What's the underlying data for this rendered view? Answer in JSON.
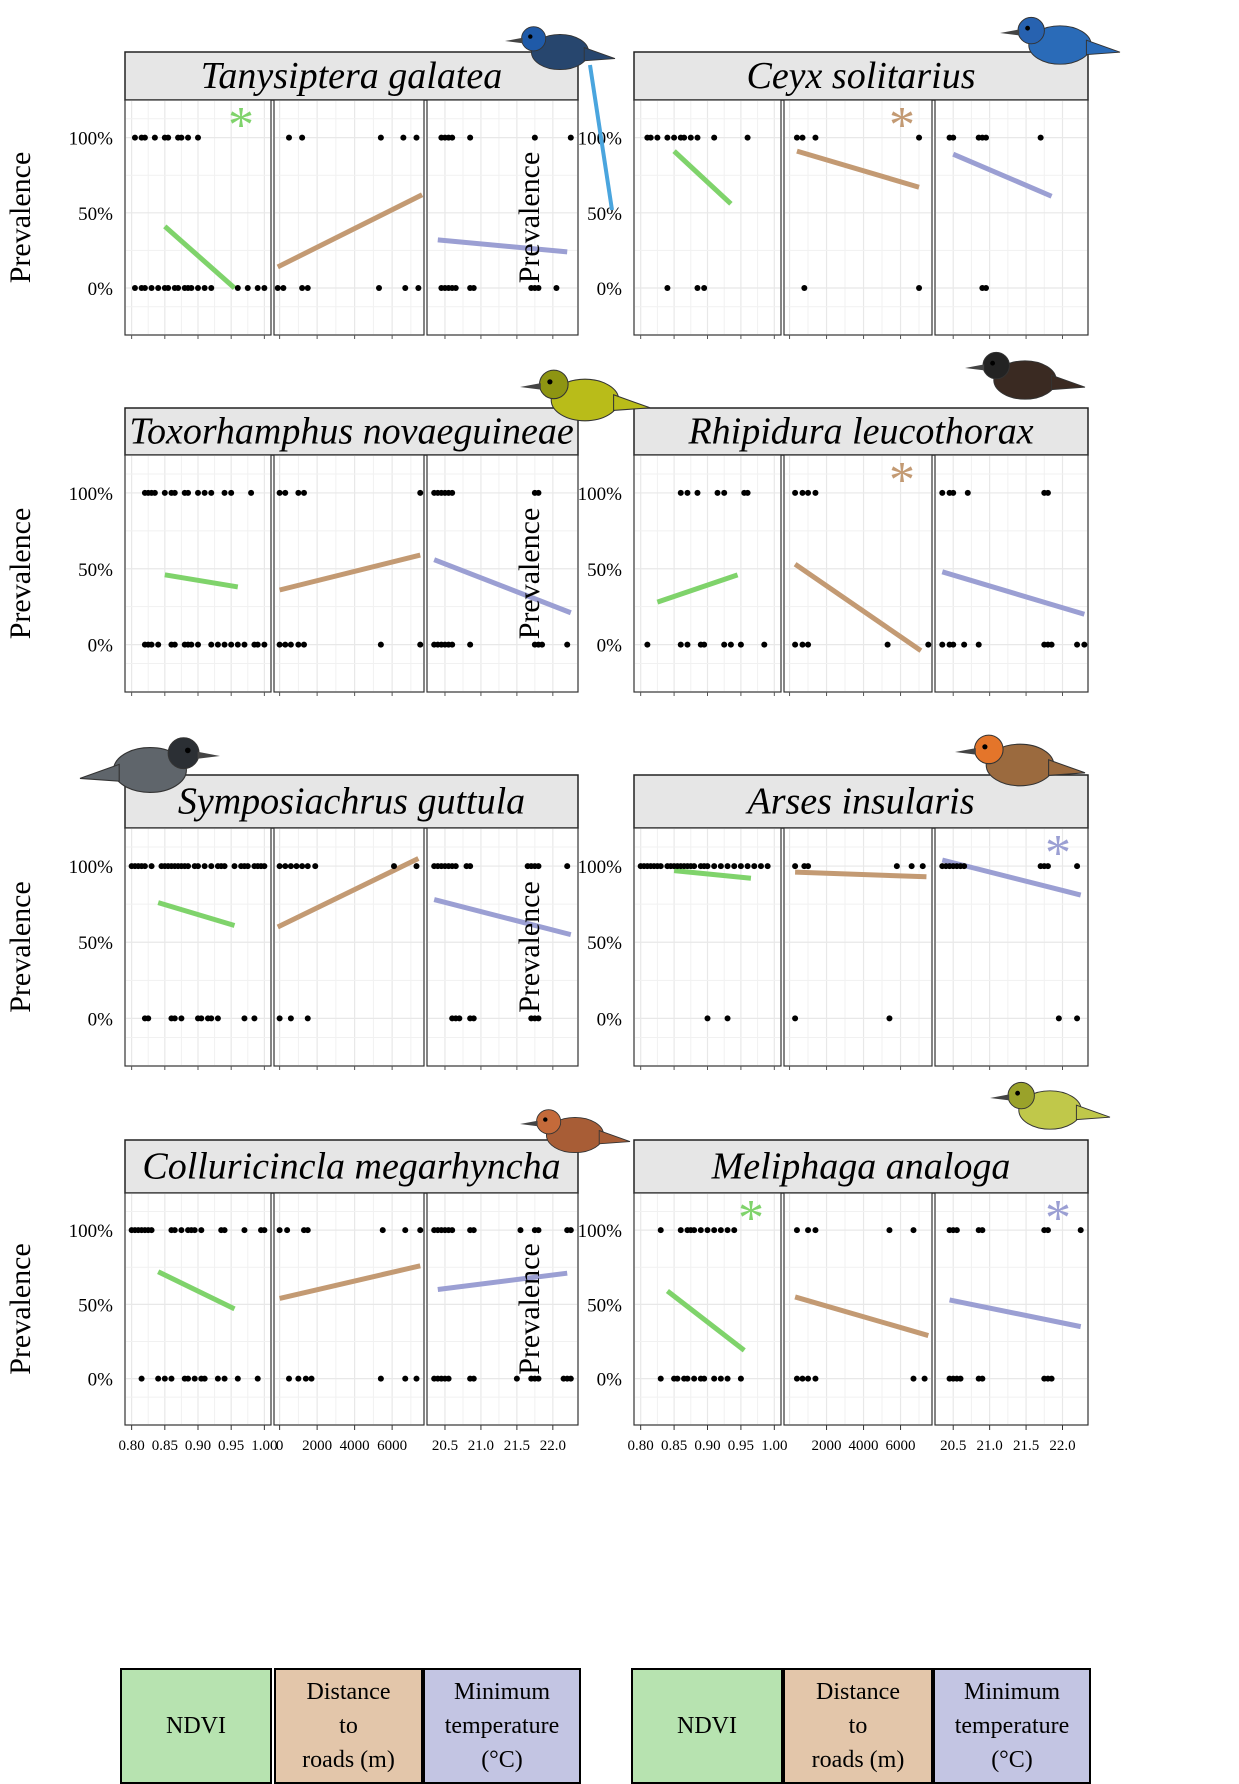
{
  "page": {
    "ylabel": "Prevalence"
  },
  "colors": {
    "ndvi": "#7fd36b",
    "roads": "#c39a73",
    "temp": "#9b9fd3",
    "grid": "#e8e8e8",
    "strip": "#e6e6e6",
    "legend_ndvi": "#b7e3b0",
    "legend_roads": "#e3c6aa",
    "legend_temp": "#c3c5e3"
  },
  "legend": {
    "ndvi": "NDVI",
    "roads": [
      "Distance",
      "to",
      "roads (m)"
    ],
    "temp": [
      "Minimum",
      "temperature",
      "(°C)"
    ]
  },
  "x_ticks": {
    "ndvi": [
      "0.80",
      "0.85",
      "0.90",
      "0.95",
      "1.00"
    ],
    "roads_left": [
      "0",
      "2000",
      "4000",
      "6000"
    ],
    "roads_right": [
      "2000",
      "4000",
      "6000"
    ],
    "temp": [
      "20.5",
      "21.0",
      "21.5",
      "22.0"
    ]
  },
  "y_ticks": [
    "100%",
    "50%",
    "0%"
  ],
  "chart_data": [
    {
      "type": "scatter",
      "title": "Tanysiptera galatea",
      "ylabel": "Prevalence",
      "significant": [
        "NDVI"
      ],
      "panels": [
        {
          "xlabel": "NDVI",
          "xlim": [
            0.79,
            1.01
          ],
          "points_100": [
            0.805,
            0.815,
            0.82,
            0.835,
            0.85,
            0.855,
            0.87,
            0.875,
            0.885,
            0.9
          ],
          "points_0": [
            0.805,
            0.815,
            0.82,
            0.83,
            0.84,
            0.85,
            0.855,
            0.865,
            0.87,
            0.88,
            0.885,
            0.89,
            0.9,
            0.91,
            0.92,
            0.96,
            0.975,
            0.99,
            1.0
          ],
          "fit": {
            "x": [
              0.85,
              0.955
            ],
            "y": [
              0.41,
              0.0
            ]
          }
        },
        {
          "xlabel": "Distance to roads (m)",
          "xlim": [
            -300,
            7700
          ],
          "points_100": [
            500,
            1200,
            5400,
            6600,
            7300
          ],
          "points_0": [
            -100,
            200,
            1200,
            1500,
            5300,
            6700,
            7400
          ],
          "fit": {
            "x": [
              -100,
              7600
            ],
            "y": [
              0.14,
              0.62
            ]
          }
        },
        {
          "xlabel": "Minimum temperature (°C)",
          "xlim": [
            20.25,
            22.35
          ],
          "points_100": [
            20.45,
            20.5,
            20.55,
            20.6,
            20.85,
            21.75,
            22.25
          ],
          "points_0": [
            20.45,
            20.5,
            20.55,
            20.6,
            20.65,
            20.85,
            20.9,
            21.7,
            21.75,
            21.8,
            22.05
          ],
          "fit": {
            "x": [
              20.4,
              22.2
            ],
            "y": [
              0.32,
              0.24
            ]
          }
        }
      ]
    },
    {
      "type": "scatter",
      "title": "Ceyx solitarius",
      "ylabel": "Prevalence",
      "significant": [
        "Distance to roads (m)"
      ],
      "panels": [
        {
          "xlabel": "NDVI",
          "xlim": [
            0.79,
            1.01
          ],
          "points_100": [
            0.81,
            0.815,
            0.825,
            0.84,
            0.85,
            0.86,
            0.865,
            0.875,
            0.885,
            0.91,
            0.96
          ],
          "points_0": [
            0.84,
            0.885,
            0.895
          ],
          "fit": {
            "x": [
              0.85,
              0.935
            ],
            "y": [
              0.91,
              0.56
            ]
          }
        },
        {
          "xlabel": "Distance to roads (m)",
          "xlim": [
            -300,
            7700
          ],
          "points_100": [
            400,
            700,
            1400,
            7000
          ],
          "points_0": [
            800,
            7000
          ],
          "fit": {
            "x": [
              400,
              7000
            ],
            "y": [
              0.91,
              0.67
            ]
          }
        },
        {
          "xlabel": "Minimum temperature (°C)",
          "xlim": [
            20.25,
            22.35
          ],
          "points_100": [
            20.45,
            20.5,
            20.85,
            20.9,
            20.95,
            21.7
          ],
          "points_0": [
            20.9,
            20.95
          ],
          "fit": {
            "x": [
              20.5,
              21.85
            ],
            "y": [
              0.89,
              0.61
            ]
          }
        }
      ]
    },
    {
      "type": "scatter",
      "title": "Toxorhamphus novaeguineae",
      "ylabel": "Prevalence",
      "significant": [],
      "panels": [
        {
          "xlabel": "NDVI",
          "xlim": [
            0.79,
            1.01
          ],
          "points_100": [
            0.82,
            0.825,
            0.83,
            0.835,
            0.85,
            0.86,
            0.865,
            0.88,
            0.885,
            0.9,
            0.91,
            0.92,
            0.94,
            0.95,
            0.98
          ],
          "points_0": [
            0.82,
            0.825,
            0.83,
            0.84,
            0.86,
            0.865,
            0.88,
            0.885,
            0.89,
            0.9,
            0.92,
            0.93,
            0.94,
            0.95,
            0.96,
            0.97,
            0.985,
            0.99,
            1.0
          ],
          "fit": {
            "x": [
              0.85,
              0.96
            ],
            "y": [
              0.46,
              0.38
            ]
          }
        },
        {
          "xlabel": "Distance to roads (m)",
          "xlim": [
            -300,
            7700
          ],
          "points_100": [
            0,
            300,
            1000,
            1300,
            7500
          ],
          "points_0": [
            0,
            300,
            600,
            1000,
            1300,
            5400,
            7500
          ],
          "fit": {
            "x": [
              0,
              7500
            ],
            "y": [
              0.36,
              0.59
            ]
          }
        },
        {
          "xlabel": "Minimum temperature (°C)",
          "xlim": [
            20.25,
            22.35
          ],
          "points_100": [
            20.35,
            20.4,
            20.45,
            20.5,
            20.55,
            20.6,
            21.75,
            21.8
          ],
          "points_0": [
            20.35,
            20.4,
            20.45,
            20.5,
            20.55,
            20.6,
            20.85,
            21.75,
            21.8,
            21.85,
            22.2
          ],
          "fit": {
            "x": [
              20.35,
              22.25
            ],
            "y": [
              0.56,
              0.21
            ]
          }
        }
      ]
    },
    {
      "type": "scatter",
      "title": "Rhipidura leucothorax",
      "ylabel": "Prevalence",
      "significant": [
        "Distance to roads (m)"
      ],
      "panels": [
        {
          "xlabel": "NDVI",
          "xlim": [
            0.79,
            1.01
          ],
          "points_100": [
            0.86,
            0.87,
            0.885,
            0.915,
            0.925,
            0.955,
            0.96
          ],
          "points_0": [
            0.81,
            0.86,
            0.87,
            0.89,
            0.895,
            0.925,
            0.935,
            0.95,
            0.985
          ],
          "fit": {
            "x": [
              0.825,
              0.945
            ],
            "y": [
              0.28,
              0.46
            ]
          }
        },
        {
          "xlabel": "Distance to roads (m)",
          "xlim": [
            -300,
            7700
          ],
          "points_100": [
            300,
            700,
            1000,
            1400
          ],
          "points_0": [
            300,
            700,
            1000,
            5300,
            7500
          ],
          "fit": {
            "x": [
              300,
              7100
            ],
            "y": [
              0.53,
              -0.04
            ]
          }
        },
        {
          "xlabel": "Minimum temperature (°C)",
          "xlim": [
            20.25,
            22.35
          ],
          "points_100": [
            20.35,
            20.45,
            20.5,
            20.7,
            21.75,
            21.8
          ],
          "points_0": [
            20.35,
            20.45,
            20.5,
            20.65,
            20.85,
            21.75,
            21.8,
            21.85,
            22.2,
            22.3
          ],
          "fit": {
            "x": [
              20.35,
              22.3
            ],
            "y": [
              0.48,
              0.2
            ]
          }
        }
      ]
    },
    {
      "type": "scatter",
      "title": "Symposiachrus guttula",
      "ylabel": "Prevalence",
      "significant": [],
      "panels": [
        {
          "xlabel": "NDVI",
          "xlim": [
            0.79,
            1.01
          ],
          "points_100": [
            0.8,
            0.805,
            0.81,
            0.815,
            0.82,
            0.83,
            0.845,
            0.85,
            0.855,
            0.86,
            0.865,
            0.87,
            0.875,
            0.88,
            0.885,
            0.895,
            0.9,
            0.91,
            0.92,
            0.93,
            0.935,
            0.94,
            0.955,
            0.965,
            0.97,
            0.975,
            0.985,
            0.99,
            0.995,
            1.0
          ],
          "points_0": [
            0.82,
            0.825,
            0.86,
            0.865,
            0.875,
            0.9,
            0.905,
            0.915,
            0.92,
            0.93,
            0.97,
            0.985
          ],
          "fit": {
            "x": [
              0.84,
              0.955
            ],
            "y": [
              0.76,
              0.61
            ]
          }
        },
        {
          "xlabel": "Distance to roads (m)",
          "xlim": [
            -300,
            7700
          ],
          "points_100": [
            0,
            300,
            600,
            900,
            1200,
            1500,
            1900,
            6100,
            7300
          ],
          "points_0": [
            0,
            600,
            1500
          ],
          "fit": {
            "x": [
              -100,
              7400
            ],
            "y": [
              0.6,
              1.05
            ]
          }
        },
        {
          "xlabel": "Minimum temperature (°C)",
          "xlim": [
            20.25,
            22.35
          ],
          "points_100": [
            20.35,
            20.4,
            20.45,
            20.5,
            20.55,
            20.6,
            20.65,
            20.8,
            20.85,
            21.65,
            21.7,
            21.75,
            21.8,
            22.2
          ],
          "points_0": [
            20.6,
            20.65,
            20.7,
            20.85,
            20.9,
            21.7,
            21.75,
            21.8
          ],
          "fit": {
            "x": [
              20.35,
              22.25
            ],
            "y": [
              0.78,
              0.55
            ]
          }
        }
      ]
    },
    {
      "type": "scatter",
      "title": "Arses insularis",
      "ylabel": "Prevalence",
      "significant": [
        "Minimum temperature (°C)"
      ],
      "panels": [
        {
          "xlabel": "NDVI",
          "xlim": [
            0.79,
            1.01
          ],
          "points_100": [
            0.8,
            0.805,
            0.81,
            0.815,
            0.82,
            0.825,
            0.83,
            0.84,
            0.845,
            0.85,
            0.855,
            0.86,
            0.865,
            0.87,
            0.875,
            0.88,
            0.89,
            0.895,
            0.9,
            0.91,
            0.92,
            0.93,
            0.94,
            0.95,
            0.96,
            0.97,
            0.98,
            0.99
          ],
          "points_0": [
            0.9,
            0.93
          ],
          "fit": {
            "x": [
              0.85,
              0.965
            ],
            "y": [
              0.97,
              0.92
            ]
          }
        },
        {
          "xlabel": "Distance to roads (m)",
          "xlim": [
            -300,
            7700
          ],
          "points_100": [
            300,
            800,
            1000,
            5800,
            6600,
            7200
          ],
          "points_0": [
            300,
            5400
          ],
          "fit": {
            "x": [
              300,
              7400
            ],
            "y": [
              0.96,
              0.93
            ]
          }
        },
        {
          "xlabel": "Minimum temperature (°C)",
          "xlim": [
            20.25,
            22.35
          ],
          "points_100": [
            20.35,
            20.4,
            20.45,
            20.5,
            20.55,
            20.6,
            20.65,
            21.7,
            21.75,
            21.8,
            22.2
          ],
          "points_0": [
            21.95,
            22.2
          ],
          "fit": {
            "x": [
              20.35,
              22.25
            ],
            "y": [
              1.04,
              0.81
            ]
          }
        }
      ]
    },
    {
      "type": "scatter",
      "title": "Colluricincla megarhyncha",
      "ylabel": "Prevalence",
      "significant": [],
      "panels": [
        {
          "xlabel": "NDVI",
          "xlim": [
            0.79,
            1.01
          ],
          "points_100": [
            0.8,
            0.805,
            0.81,
            0.815,
            0.82,
            0.825,
            0.83,
            0.86,
            0.865,
            0.875,
            0.885,
            0.89,
            0.895,
            0.905,
            0.935,
            0.94,
            0.97,
            0.995,
            1.0
          ],
          "points_0": [
            0.815,
            0.84,
            0.85,
            0.86,
            0.88,
            0.885,
            0.895,
            0.905,
            0.91,
            0.93,
            0.94,
            0.96,
            0.99
          ],
          "fit": {
            "x": [
              0.84,
              0.955
            ],
            "y": [
              0.72,
              0.47
            ]
          }
        },
        {
          "xlabel": "Distance to roads (m)",
          "xlim": [
            -300,
            7700
          ],
          "points_100": [
            0,
            400,
            1300,
            1500,
            5500,
            6700,
            7500
          ],
          "points_0": [
            500,
            1000,
            1400,
            1700,
            5400,
            6700,
            7300
          ],
          "fit": {
            "x": [
              0,
              7500
            ],
            "y": [
              0.54,
              0.76
            ]
          }
        },
        {
          "xlabel": "Minimum temperature (°C)",
          "xlim": [
            20.25,
            22.35
          ],
          "points_100": [
            20.35,
            20.4,
            20.45,
            20.5,
            20.55,
            20.6,
            20.85,
            20.9,
            21.55,
            21.75,
            21.8,
            22.2,
            22.25
          ],
          "points_0": [
            20.35,
            20.4,
            20.45,
            20.5,
            20.55,
            20.85,
            20.9,
            21.5,
            21.7,
            21.75,
            21.8,
            22.15,
            22.2,
            22.25
          ],
          "fit": {
            "x": [
              20.4,
              22.2
            ],
            "y": [
              0.6,
              0.71
            ]
          }
        }
      ]
    },
    {
      "type": "scatter",
      "title": "Meliphaga analoga",
      "ylabel": "Prevalence",
      "significant": [
        "NDVI",
        "Minimum temperature (°C)"
      ],
      "panels": [
        {
          "xlabel": "NDVI",
          "xlim": [
            0.79,
            1.01
          ],
          "points_100": [
            0.83,
            0.86,
            0.87,
            0.875,
            0.88,
            0.89,
            0.9,
            0.91,
            0.92,
            0.93,
            0.94
          ],
          "points_0": [
            0.83,
            0.85,
            0.855,
            0.865,
            0.87,
            0.88,
            0.89,
            0.895,
            0.91,
            0.92,
            0.93,
            0.95
          ],
          "fit": {
            "x": [
              0.84,
              0.955
            ],
            "y": [
              0.59,
              0.19
            ]
          }
        },
        {
          "xlabel": "Distance to roads (m)",
          "xlim": [
            -300,
            7700
          ],
          "points_100": [
            400,
            1000,
            1400,
            5400,
            6700
          ],
          "points_0": [
            400,
            700,
            1000,
            1400,
            6700,
            7300
          ],
          "fit": {
            "x": [
              300,
              7500
            ],
            "y": [
              0.55,
              0.29
            ]
          }
        },
        {
          "xlabel": "Minimum temperature (°C)",
          "xlim": [
            20.25,
            22.35
          ],
          "points_100": [
            20.45,
            20.5,
            20.55,
            20.85,
            20.9,
            21.75,
            21.8,
            22.25
          ],
          "points_0": [
            20.45,
            20.5,
            20.55,
            20.6,
            20.85,
            20.9,
            21.75,
            21.8,
            21.85
          ],
          "fit": {
            "x": [
              20.45,
              22.25
            ],
            "y": [
              0.53,
              0.35
            ]
          }
        }
      ]
    }
  ]
}
